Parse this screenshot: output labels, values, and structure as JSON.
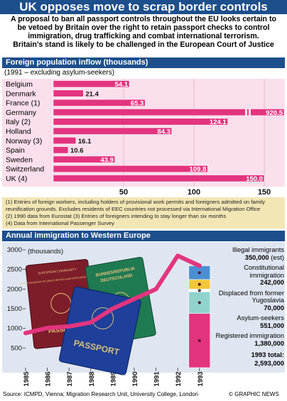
{
  "headline": "UK opposes move to scrap border controls",
  "intro": [
    "A proposal to ban all passport controls throughout the EU looks certain to",
    "be vetoed by Britain over the right to retain passport checks to control",
    "immigration, drug trafficking and combat international terrorism.",
    "Britain’s stand is likely to be challenged in the European Court of Justice"
  ],
  "section1": {
    "title": "Foreign population inflow (thousands)",
    "subtitle": "(1991 – excluding asylum-seekers)"
  },
  "notes": [
    "(1) Entries of foreign workers, including holders of provisional work permits and foreigners admitted on family",
    "reunification grounds. Excludes residents of EEC countries not processed via International Migration Office",
    "(2) 1990 data from Eurostat (3) Entries of foreigners intending to stay longer than six months",
    "(4) Data from International Passenger Survey"
  ],
  "section2": {
    "title": "Annual immigration to Western Europe",
    "ylabel": "(thousands)"
  },
  "right_labels": [
    {
      "label": "Illegal immigrants",
      "value": "350,000",
      "suffix": " (est)"
    },
    {
      "label": "Constitutional immigration",
      "value": "242,000"
    },
    {
      "label": "Displaced from former Yugoslavia",
      "value": "70,000"
    },
    {
      "label": "Asylum-seekers",
      "value": "551,000"
    },
    {
      "label": "Registered immigration",
      "value": "1,380,000"
    }
  ],
  "total": {
    "label": "1993 total:",
    "value": "2,593,000"
  },
  "source": "Source: ICMPD, Vienna; Migration Research Unit, University College, London",
  "credit": "© GRAPHIC NEWS",
  "passports": {
    "left_line1": "EUROPEAN COMMUNITY",
    "left_line2": "UNITED KINGDOM OF GREAT BRITAIN AND NORTHERN IRELAND",
    "left_word": "PASSPORT",
    "green_line1": "BUNDESREPUBLIK",
    "green_line2": "DEUTSCHLAND",
    "blue_word": "PASSPORT"
  },
  "colors": {
    "navy": "#1d4f8c",
    "pink": "#e3347f",
    "pink_bg": "#fbdfec",
    "note_bg": "#f3e6b5",
    "chart_bg": "#dfe6f1"
  },
  "chart_data": [
    {
      "type": "bar",
      "orientation": "horizontal",
      "categories": [
        "Belgium",
        "Denmark",
        "France (1)",
        "Germany",
        "Italy (2)",
        "Holland",
        "Norway (3)",
        "Spain",
        "Sweden",
        "Switzerland",
        "UK (4)"
      ],
      "values": [
        54.1,
        21.4,
        65.3,
        920.5,
        124.1,
        84.3,
        16.1,
        10.6,
        43.9,
        109.8,
        150.0
      ],
      "value_labels": [
        "54.1",
        "21.4",
        "65.3",
        "920.5",
        "124.1",
        "84.3",
        "16.1",
        "10.6",
        "43.9",
        "109.8",
        "150.0"
      ],
      "axis_ticks": [
        "50",
        "100",
        "150"
      ],
      "xlim": [
        0,
        150
      ],
      "truncated": [
        "Germany"
      ]
    },
    {
      "type": "line",
      "x": [
        "1985",
        "1986",
        "1987",
        "1988",
        "1989",
        "1990",
        "1991",
        "1992",
        "1993"
      ],
      "y": [
        880,
        1010,
        1050,
        1150,
        1500,
        1750,
        2000,
        2850,
        2593
      ],
      "ylim": [
        0,
        3000
      ],
      "yticks": [
        "500",
        "1000",
        "1500",
        "2000",
        "2500",
        "3000"
      ],
      "stack_1993": [
        {
          "name": "Registered immigration",
          "value": 1380,
          "color": "#e3347f"
        },
        {
          "name": "Asylum-seekers",
          "value": 551,
          "color": "#90d3cc"
        },
        {
          "name": "Displaced from former Yugoslavia",
          "value": 70,
          "color": "#ffffff"
        },
        {
          "name": "Constitutional immigration",
          "value": 242,
          "color": "#f1c63a"
        },
        {
          "name": "Illegal immigrants",
          "value": 350,
          "color": "#4a8fd1"
        }
      ]
    }
  ]
}
